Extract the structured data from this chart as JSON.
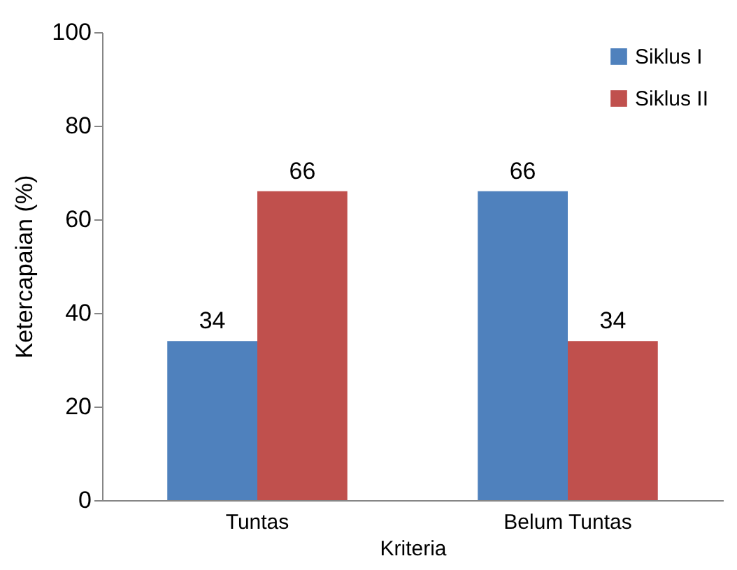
{
  "chart_data": {
    "type": "bar",
    "xlabel": "Kriteria",
    "ylabel": "Ketercapaian (%)",
    "categories": [
      "Tuntas",
      "Belum Tuntas"
    ],
    "series": [
      {
        "name": "Siklus I",
        "color": "#4f81bd",
        "values": [
          34,
          66
        ]
      },
      {
        "name": "Siklus II",
        "color": "#c0504d",
        "values": [
          66,
          34
        ]
      }
    ],
    "ylim": [
      0,
      100
    ],
    "yticks": [
      0,
      20,
      40,
      60,
      80,
      100
    ],
    "grid": false,
    "legend": "top right",
    "data_labels": true
  }
}
